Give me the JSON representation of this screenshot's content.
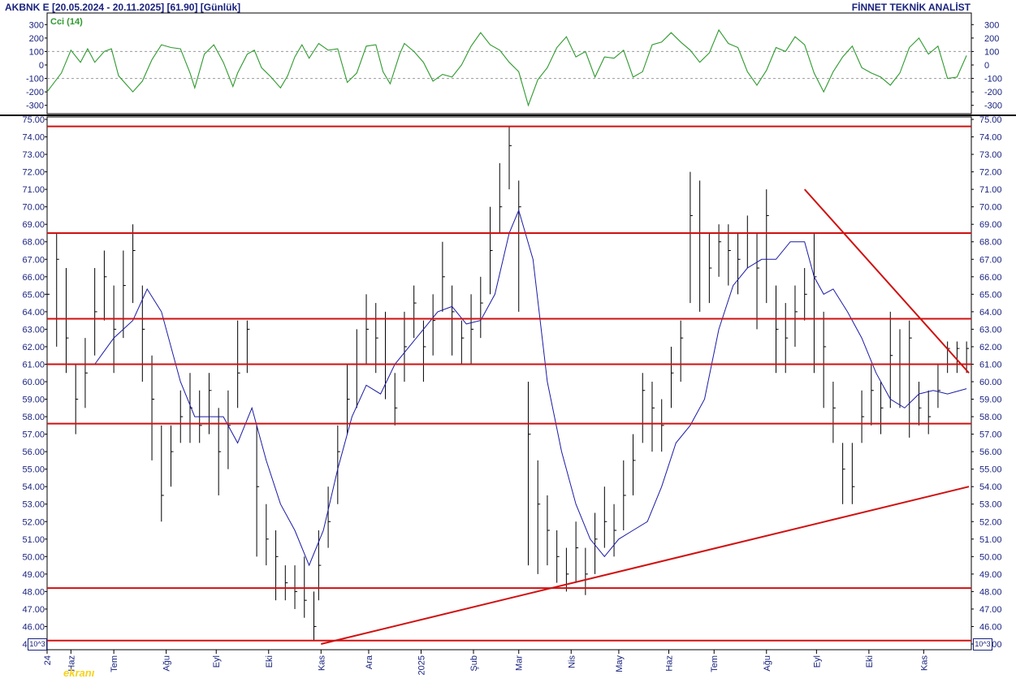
{
  "header": {
    "instrument": "AKBNK E  [20.05.2024 - 20.11.2025]  [61.90]  [Günlük]",
    "provider": "FİNNET TEKNİK ANALİST"
  },
  "logo_text": "ekranı",
  "scale_label": "10^3",
  "colors": {
    "price_bar": "#000000",
    "ma_line": "#1a1aa6",
    "level_line": "#d01010",
    "cci_line": "#2e9a2e",
    "text": "#1a237e"
  },
  "chart_data": [
    {
      "type": "line",
      "panel": "indicator",
      "title": "Cci (14)",
      "yticks": [
        300,
        200,
        100,
        0,
        -100,
        -200,
        -300
      ],
      "ylim": [
        -350,
        350
      ],
      "grid_levels": [
        100,
        -100
      ],
      "series": [
        {
          "name": "Cci (14)",
          "x": [
            0,
            6,
            10,
            14,
            17,
            20,
            24,
            27,
            30,
            33,
            36,
            40,
            44,
            48,
            52,
            56,
            60,
            62,
            66,
            70,
            74,
            78,
            80,
            84,
            87,
            90,
            94,
            98,
            101,
            104,
            107,
            110,
            114,
            118,
            122,
            126,
            130,
            134,
            138,
            141,
            144,
            148,
            150,
            154,
            158,
            162,
            166,
            170,
            174,
            178,
            182,
            186,
            190,
            194,
            198,
            202,
            206,
            210,
            214,
            218,
            222,
            226,
            230,
            234,
            238,
            242,
            246,
            250,
            254,
            258,
            262,
            266,
            270,
            274,
            278,
            282,
            286,
            290,
            294,
            298,
            302,
            306,
            310,
            314,
            318,
            322,
            326,
            330,
            334,
            338,
            342,
            346,
            350,
            354,
            358,
            362,
            366,
            370,
            374,
            378,
            382,
            386
          ],
          "values": [
            -200,
            -60,
            110,
            20,
            120,
            20,
            100,
            120,
            -80,
            -140,
            -200,
            -120,
            40,
            150,
            130,
            120,
            -60,
            -170,
            80,
            150,
            20,
            -160,
            -60,
            80,
            110,
            -20,
            -90,
            -170,
            -80,
            60,
            150,
            50,
            160,
            110,
            120,
            -130,
            -60,
            140,
            150,
            -50,
            -140,
            80,
            160,
            100,
            20,
            -120,
            -70,
            -90,
            0,
            140,
            240,
            150,
            110,
            20,
            -50,
            -300,
            -110,
            -20,
            130,
            210,
            60,
            100,
            -90,
            60,
            50,
            110,
            -90,
            -50,
            150,
            170,
            240,
            170,
            110,
            20,
            90,
            260,
            160,
            130,
            -50,
            -150,
            -40,
            130,
            100,
            210,
            150,
            -60,
            -200,
            -50,
            60,
            140,
            -20,
            -60,
            -90,
            -150,
            -60,
            130,
            200,
            80,
            140,
            -100,
            -90,
            70
          ]
        }
      ]
    },
    {
      "type": "bar",
      "panel": "price",
      "ylim": [
        45,
        75
      ],
      "yticks": [
        75,
        74,
        73,
        72,
        71,
        70,
        69,
        68,
        67,
        66,
        65,
        64,
        63,
        62,
        61,
        60,
        59,
        58,
        57,
        56,
        55,
        54,
        53,
        52,
        51,
        50,
        49,
        48,
        47,
        46,
        45
      ],
      "x_axis_labels": [
        "24",
        "Haz",
        "Tem",
        "Ağu",
        "Eyl",
        "Eki",
        "Kas",
        "Ara",
        "2025",
        "Şub",
        "Mar",
        "Nis",
        "May",
        "Haz",
        "Tem",
        "Ağu",
        "Eyl",
        "Eki",
        "Kas"
      ],
      "x_axis_label_positions": [
        0,
        10,
        28,
        50,
        71,
        93,
        115,
        135,
        157,
        179,
        198,
        220,
        240,
        261,
        280,
        302,
        323,
        345,
        368
      ],
      "horizontal_levels": [
        74.6,
        68.5,
        63.6,
        61.0,
        57.6,
        48.2,
        45.2
      ],
      "trendlines": [
        {
          "from": [
            115,
            45.0
          ],
          "to": [
            387,
            54.0
          ]
        },
        {
          "from": [
            318,
            71.0
          ],
          "to": [
            387,
            60.5
          ]
        }
      ],
      "series": [
        {
          "name": "AKBNK E",
          "x": [
            0,
            4,
            8,
            12,
            16,
            20,
            24,
            28,
            32,
            36,
            40,
            44,
            48,
            52,
            56,
            60,
            64,
            68,
            72,
            76,
            80,
            84,
            88,
            92,
            96,
            100,
            104,
            108,
            112,
            114,
            118,
            122,
            126,
            130,
            134,
            138,
            142,
            146,
            150,
            154,
            158,
            162,
            166,
            170,
            174,
            178,
            182,
            186,
            190,
            194,
            198,
            202,
            206,
            210,
            214,
            218,
            222,
            226,
            230,
            234,
            238,
            242,
            246,
            250,
            254,
            258,
            262,
            266,
            270,
            274,
            278,
            282,
            286,
            290,
            294,
            298,
            302,
            306,
            310,
            314,
            318,
            322,
            326,
            330,
            334,
            338,
            342,
            346,
            350,
            354,
            358,
            362,
            366,
            370,
            374,
            378,
            382,
            386
          ],
          "values": [
            65.0,
            67.0,
            62.5,
            59.0,
            60.5,
            64.0,
            66.0,
            63.0,
            65.5,
            67.5,
            63.0,
            59.0,
            53.5,
            56.0,
            58.0,
            58.5,
            57.5,
            59.5,
            56.0,
            57.5,
            60.5,
            63.0,
            54.0,
            51.0,
            50.0,
            48.5,
            48.0,
            47.5,
            46.0,
            49.5,
            52.0,
            56.0,
            59.0,
            61.0,
            63.0,
            62.5,
            61.0,
            58.5,
            62.0,
            64.5,
            62.0,
            63.5,
            66.0,
            64.0,
            62.5,
            63.0,
            64.5,
            67.5,
            70.0,
            73.5,
            70.0,
            57.0,
            53.0,
            51.5,
            50.0,
            49.0,
            50.5,
            49.0,
            51.0,
            52.0,
            51.5,
            53.5,
            55.5,
            59.5,
            58.5,
            57.5,
            60.5,
            62.5,
            69.5,
            68.5,
            66.5,
            68.0,
            67.5,
            67.0,
            68.5,
            66.5,
            69.5,
            63.0,
            62.5,
            64.0,
            65.0,
            66.0,
            62.0,
            58.5,
            55.0,
            54.0,
            58.0,
            59.5,
            58.5,
            61.5,
            61.0,
            62.5,
            58.5,
            58.0,
            59.5,
            61.9,
            61.9,
            61.9
          ],
          "highs": [
            69.0,
            68.5,
            66.5,
            61.0,
            62.5,
            66.5,
            67.5,
            65.5,
            67.5,
            69.0,
            65.5,
            61.5,
            57.5,
            57.5,
            59.5,
            60.5,
            59.5,
            60.5,
            58.5,
            59.5,
            63.5,
            63.5,
            57.5,
            53.0,
            51.5,
            49.5,
            49.5,
            50.0,
            48.0,
            51.5,
            54.0,
            57.5,
            61.0,
            63.0,
            65.0,
            64.5,
            64.0,
            60.5,
            64.0,
            65.5,
            63.5,
            65.0,
            68.0,
            65.5,
            63.5,
            65.0,
            66.0,
            70.0,
            72.5,
            74.6,
            71.5,
            60.0,
            55.5,
            53.5,
            51.5,
            50.5,
            52.0,
            50.5,
            52.5,
            54.0,
            53.0,
            55.5,
            57.0,
            60.5,
            60.0,
            59.0,
            62.0,
            63.5,
            72.0,
            71.5,
            68.5,
            69.0,
            69.0,
            68.5,
            69.5,
            68.5,
            71.0,
            65.5,
            64.5,
            65.5,
            66.5,
            68.5,
            64.0,
            60.0,
            56.5,
            56.5,
            59.5,
            61.0,
            60.0,
            64.0,
            63.0,
            63.5,
            60.0,
            59.5,
            61.0,
            62.3,
            62.3,
            62.3
          ],
          "lows": [
            63.0,
            62.0,
            60.5,
            57.0,
            58.5,
            61.5,
            63.5,
            60.5,
            62.5,
            64.5,
            60.0,
            55.5,
            52.0,
            54.0,
            56.5,
            56.5,
            56.5,
            57.0,
            53.5,
            55.0,
            58.5,
            60.5,
            50.0,
            49.5,
            47.5,
            47.5,
            47.0,
            46.5,
            45.2,
            47.5,
            50.5,
            53.0,
            57.0,
            58.5,
            61.0,
            60.5,
            59.0,
            57.5,
            60.0,
            62.5,
            60.0,
            61.5,
            64.0,
            61.5,
            61.0,
            61.0,
            62.5,
            65.0,
            68.5,
            71.0,
            64.0,
            49.5,
            49.0,
            49.5,
            48.5,
            48.0,
            48.5,
            47.8,
            49.0,
            50.5,
            50.0,
            51.5,
            53.5,
            56.5,
            56.0,
            56.0,
            58.5,
            60.0,
            64.5,
            64.0,
            64.5,
            66.0,
            65.5,
            65.0,
            66.5,
            63.0,
            64.5,
            60.5,
            60.5,
            62.0,
            63.5,
            60.5,
            58.5,
            56.5,
            53.0,
            53.0,
            56.5,
            57.5,
            57.0,
            58.5,
            58.5,
            56.8,
            57.5,
            57.0,
            58.5,
            60.5,
            60.5,
            60.5
          ]
        },
        {
          "name": "MA",
          "x": [
            20,
            28,
            36,
            42,
            48,
            56,
            62,
            68,
            74,
            80,
            86,
            92,
            98,
            104,
            110,
            116,
            122,
            128,
            134,
            140,
            146,
            152,
            158,
            164,
            170,
            176,
            182,
            188,
            194,
            198,
            204,
            210,
            216,
            222,
            228,
            234,
            240,
            246,
            252,
            258,
            264,
            270,
            276,
            282,
            288,
            294,
            300,
            306,
            312,
            318,
            322,
            326,
            330,
            336,
            342,
            348,
            354,
            360,
            366,
            372,
            378,
            386
          ],
          "values": [
            61.0,
            62.5,
            63.5,
            65.3,
            64.0,
            60.0,
            58.0,
            58.0,
            58.0,
            56.5,
            58.5,
            55.5,
            53.0,
            51.5,
            49.5,
            51.5,
            55.0,
            58.0,
            59.8,
            59.3,
            61.0,
            62.0,
            63.0,
            64.0,
            64.3,
            63.3,
            63.5,
            65.0,
            68.5,
            69.8,
            67.0,
            60.0,
            56.0,
            53.0,
            51.0,
            50.0,
            51.0,
            51.5,
            52.0,
            54.0,
            56.5,
            57.5,
            59.0,
            63.0,
            65.5,
            66.5,
            67.0,
            67.0,
            68.0,
            68.0,
            66.0,
            65.0,
            65.3,
            64.0,
            62.5,
            60.5,
            59.0,
            58.5,
            59.3,
            59.5,
            59.3,
            59.6
          ]
        }
      ]
    }
  ]
}
